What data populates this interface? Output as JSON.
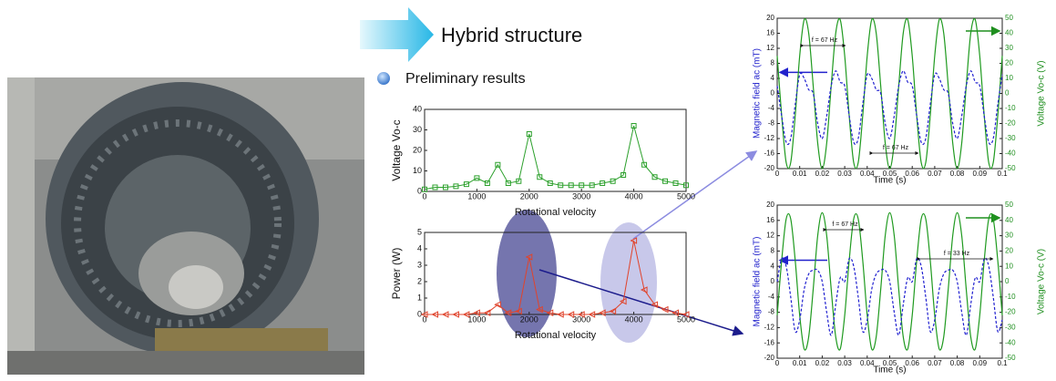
{
  "header": {
    "title": "Hybrid structure",
    "bullet": "Preliminary results"
  },
  "chart_data": [
    {
      "type": "line",
      "marker": "square",
      "color": "#2ca02c",
      "ylabel": "Voltage Vo-c",
      "xlabel": "Rotational velocity",
      "x": [
        0,
        200,
        400,
        600,
        800,
        1000,
        1200,
        1400,
        1600,
        1800,
        2000,
        2200,
        2400,
        2600,
        2800,
        3000,
        3200,
        3400,
        3600,
        3800,
        4000,
        4200,
        4400,
        4600,
        4800,
        5000
      ],
      "values": [
        1,
        2,
        2,
        2.5,
        3.5,
        6.5,
        4,
        13,
        4,
        5,
        28,
        7,
        4,
        3,
        3,
        3,
        3,
        4,
        5,
        8,
        32,
        13,
        7,
        5,
        4,
        3
      ],
      "xlim": [
        0,
        5000
      ],
      "xticks": [
        0,
        1000,
        2000,
        3000,
        4000,
        5000
      ],
      "ylim": [
        0,
        40
      ],
      "yticks": [
        0,
        10,
        20,
        30,
        40
      ]
    },
    {
      "type": "line",
      "marker": "triangle",
      "color": "#e0442c",
      "ylabel": "Power (W)",
      "xlabel": "Rotational velocity",
      "x": [
        0,
        200,
        400,
        600,
        800,
        1000,
        1200,
        1400,
        1600,
        1800,
        2000,
        2200,
        2400,
        2600,
        2800,
        3000,
        3200,
        3400,
        3600,
        3800,
        4000,
        4200,
        4400,
        4600,
        4800,
        5000
      ],
      "values": [
        0,
        0,
        0,
        0,
        0,
        0.1,
        0.1,
        0.6,
        0.1,
        0.2,
        3.5,
        0.3,
        0.1,
        0,
        0,
        0,
        0,
        0.1,
        0.2,
        0.8,
        4.5,
        1.5,
        0.6,
        0.3,
        0.1,
        0
      ],
      "xlim": [
        0,
        5000
      ],
      "xticks": [
        0,
        1000,
        2000,
        3000,
        4000,
        5000
      ],
      "ylim": [
        0,
        5
      ],
      "yticks": [
        0,
        1,
        2,
        3,
        4,
        5
      ]
    },
    {
      "type": "line",
      "xlabel": "Time (s)",
      "ylabel": "Magnetic field ac (mT)",
      "y2label": "Voltage Vo-c (V)",
      "ylabel_color": "#2222cc",
      "y2label_color": "#1f8f1f",
      "annotations": [
        "f = 67 Hz",
        "f = 67 Hz"
      ],
      "x": [
        0,
        0.002,
        0.004,
        0.006,
        0.008,
        0.01,
        0.012,
        0.014,
        0.016,
        0.018,
        0.02,
        0.022,
        0.024,
        0.026,
        0.028,
        0.03,
        0.032,
        0.034,
        0.036,
        0.038,
        0.04,
        0.042,
        0.044,
        0.046,
        0.048,
        0.05,
        0.052,
        0.054,
        0.056,
        0.058,
        0.06,
        0.062,
        0.064,
        0.066,
        0.068,
        0.07,
        0.072,
        0.074,
        0.076,
        0.078,
        0.08,
        0.082,
        0.084,
        0.086,
        0.088,
        0.09,
        0.092,
        0.094,
        0.096,
        0.098,
        0.1
      ],
      "series": [
        {
          "color": "#1f9a1f",
          "axis": "y2",
          "values": [
            25,
            -15,
            -46,
            -46,
            -15,
            25,
            49,
            40,
            5,
            -33,
            -50,
            -33,
            5,
            40,
            49,
            25,
            -15,
            -46,
            -46,
            -15,
            25,
            49,
            40,
            5,
            -33,
            -50,
            -33,
            5,
            40,
            49,
            25,
            -15,
            -46,
            -46,
            -15,
            25,
            49,
            40,
            5,
            -33,
            -50,
            -33,
            5,
            40,
            49,
            25,
            -15,
            -46,
            -46,
            -15,
            25
          ]
        },
        {
          "color": "#2020d0",
          "dashed": true,
          "values": [
            2,
            -6,
            -13,
            -12,
            -3,
            5,
            4,
            1,
            0,
            -8,
            -12,
            -6,
            2,
            6,
            3,
            2,
            -6,
            -13,
            -12,
            -3,
            5,
            4,
            1,
            0,
            -8,
            -12,
            -6,
            2,
            6,
            3,
            2,
            -6,
            -13,
            -12,
            -3,
            5,
            4,
            1,
            0,
            -8,
            -12,
            -6,
            2,
            6,
            3,
            2,
            -6,
            -13,
            -12,
            -3,
            5
          ]
        }
      ],
      "xlim": [
        0,
        0.1
      ],
      "xticks": [
        0,
        0.01,
        0.02,
        0.03,
        0.04,
        0.05,
        0.06,
        0.07,
        0.08,
        0.09,
        0.1
      ],
      "ylim": [
        -20,
        20
      ],
      "yticks": [
        -20,
        -16,
        -12,
        -8,
        -4,
        0,
        4,
        8,
        12,
        16,
        20
      ],
      "y2lim": [
        -50,
        50
      ],
      "y2ticks": [
        -50,
        -40,
        -30,
        -20,
        -10,
        0,
        10,
        20,
        30,
        40,
        50
      ]
    },
    {
      "type": "line",
      "xlabel": "Time (s)",
      "ylabel": "Magnetic field ac (mT)",
      "y2label": "Voltage Vo-c (V)",
      "ylabel_color": "#2222cc",
      "y2label_color": "#1f8f1f",
      "annotations": [
        "f = 67 Hz",
        "f = 33 Hz"
      ],
      "x": [
        0,
        0.002,
        0.004,
        0.006,
        0.008,
        0.01,
        0.012,
        0.014,
        0.016,
        0.018,
        0.02,
        0.022,
        0.024,
        0.026,
        0.028,
        0.03,
        0.032,
        0.034,
        0.036,
        0.038,
        0.04,
        0.042,
        0.044,
        0.046,
        0.048,
        0.05,
        0.052,
        0.054,
        0.056,
        0.058,
        0.06,
        0.062,
        0.064,
        0.066,
        0.068,
        0.07,
        0.072,
        0.074,
        0.076,
        0.078,
        0.08,
        0.082,
        0.084,
        0.086,
        0.088,
        0.09,
        0.092,
        0.094,
        0.096,
        0.098,
        0.1
      ],
      "series": [
        {
          "color": "#1f9a1f",
          "axis": "y2",
          "values": [
            -22,
            14,
            41,
            41,
            14,
            -22,
            -44,
            -36,
            -5,
            30,
            45,
            30,
            -5,
            -36,
            -44,
            -22,
            14,
            41,
            41,
            14,
            -22,
            -44,
            -36,
            -5,
            30,
            45,
            30,
            -5,
            -36,
            -44,
            -22,
            14,
            41,
            41,
            14,
            -22,
            -44,
            -36,
            -5,
            30,
            45,
            30,
            -5,
            -36,
            -44,
            -22,
            14,
            41,
            41,
            14,
            -22
          ]
        },
        {
          "color": "#2020d0",
          "dashed": true,
          "values": [
            0,
            6,
            4,
            -4,
            -13,
            -10,
            -2,
            2,
            3,
            3,
            0,
            -8,
            -14,
            -6,
            1,
            0,
            6,
            4,
            -4,
            -13,
            -10,
            -2,
            2,
            3,
            3,
            0,
            -8,
            -14,
            -6,
            1,
            0,
            6,
            4,
            -4,
            -13,
            -10,
            -2,
            2,
            3,
            3,
            0,
            -8,
            -14,
            -6,
            1,
            0,
            6,
            4,
            -4,
            -13,
            -10
          ]
        }
      ],
      "xlim": [
        0,
        0.1
      ],
      "xticks": [
        0,
        0.01,
        0.02,
        0.03,
        0.04,
        0.05,
        0.06,
        0.07,
        0.08,
        0.09,
        0.1
      ],
      "ylim": [
        -20,
        20
      ],
      "yticks": [
        -20,
        -16,
        -12,
        -8,
        -4,
        0,
        4,
        8,
        12,
        16,
        20
      ],
      "y2lim": [
        -50,
        50
      ],
      "y2ticks": [
        -50,
        -40,
        -30,
        -20,
        -10,
        0,
        10,
        20,
        30,
        40,
        50
      ]
    }
  ]
}
